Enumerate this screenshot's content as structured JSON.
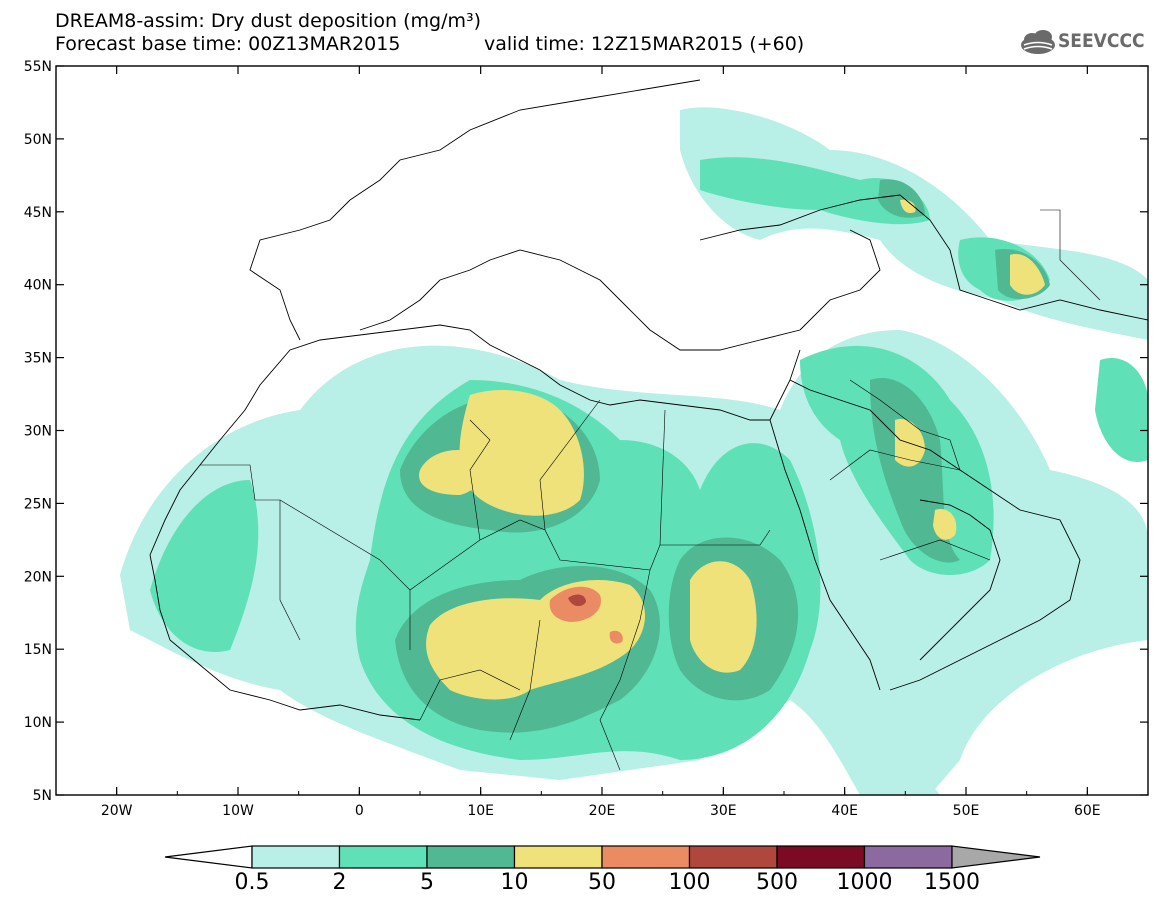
{
  "title": {
    "line1": "DREAM8-assim: Dry dust deposition (mg/m³)",
    "base_time": "Forecast base time: 00Z13MAR2015",
    "valid_time": "valid time: 12Z15MAR2015 (+60)"
  },
  "logo": {
    "text": "SEEVCCC",
    "icon": "cloud-logo-icon"
  },
  "map": {
    "lon_labels": [
      "20W",
      "10W",
      "0",
      "10E",
      "20E",
      "30E",
      "40E",
      "50E",
      "60E"
    ],
    "lat_labels": [
      "55N",
      "50N",
      "45N",
      "40N",
      "35N",
      "30N",
      "25N",
      "20N",
      "15N",
      "10N",
      "5N"
    ],
    "lon_range": [
      -25,
      65
    ],
    "lat_range": [
      5,
      55
    ]
  },
  "colorbar": {
    "labels": [
      "0.5",
      "2",
      "5",
      "10",
      "50",
      "100",
      "500",
      "1000",
      "1500"
    ],
    "colors": [
      "#b8efe6",
      "#5fe0b7",
      "#50b994",
      "#f0e27a",
      "#eb8b64",
      "#b0473c",
      "#7d0a24",
      "#8c6aa0"
    ],
    "under_color": "#ffffff",
    "over_color": "#a8a8a8"
  }
}
